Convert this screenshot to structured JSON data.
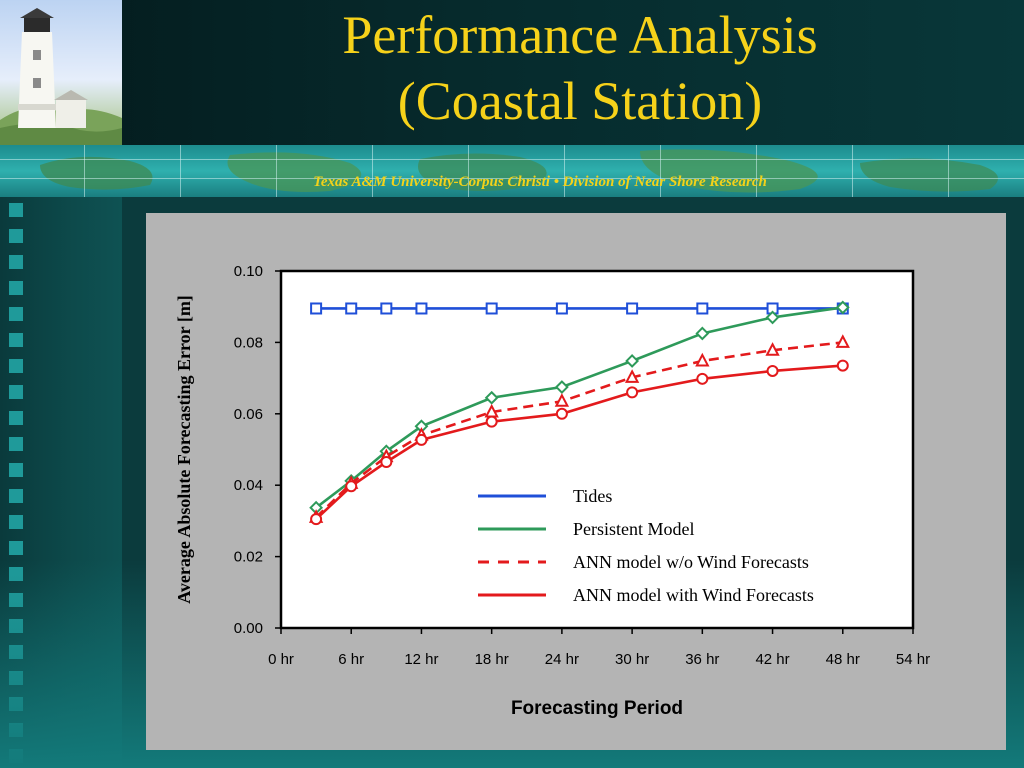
{
  "slide": {
    "title_line1": "Performance Analysis",
    "title_line2": "(Coastal Station)",
    "banner": "Texas A&M University-Corpus Christi • Division of Near Shore Research"
  },
  "colors": {
    "title": "#f6d21a",
    "banner": "#f3d21a",
    "tides": "#1f4fd8",
    "persistent": "#2e9a5a",
    "ann_no_wind": "#e31a1c",
    "ann_wind": "#e31a1c"
  },
  "chart_data": {
    "type": "line",
    "title": "",
    "xlabel": "Forecasting Period",
    "ylabel": "Average Absolute Forecasting Error [m]",
    "xlim": [
      0,
      54
    ],
    "ylim": [
      0,
      0.1
    ],
    "x_ticks": [
      0,
      6,
      12,
      18,
      24,
      30,
      36,
      42,
      48,
      54
    ],
    "x_tick_labels": [
      "0 hr",
      "6 hr",
      "12 hr",
      "18 hr",
      "24 hr",
      "30 hr",
      "36 hr",
      "42 hr",
      "48 hr",
      "54 hr"
    ],
    "y_ticks": [
      0,
      0.02,
      0.04,
      0.06,
      0.08,
      0.1
    ],
    "y_tick_labels": [
      "0.00",
      "0.02",
      "0.04",
      "0.06",
      "0.08",
      "0.10"
    ],
    "grid": false,
    "legend_position": "lower-right",
    "series": [
      {
        "name": "Tides",
        "color": "#1f4fd8",
        "dash": "solid",
        "marker": "square",
        "x": [
          3,
          6,
          9,
          12,
          18,
          24,
          30,
          36,
          42,
          48
        ],
        "y": [
          0.0895,
          0.0895,
          0.0895,
          0.0895,
          0.0895,
          0.0895,
          0.0895,
          0.0895,
          0.0895,
          0.0895
        ]
      },
      {
        "name": "Persistent Model",
        "color": "#2e9a5a",
        "dash": "solid",
        "marker": "diamond",
        "x": [
          3,
          6,
          9,
          12,
          18,
          24,
          30,
          36,
          42,
          48
        ],
        "y": [
          0.0337,
          0.0412,
          0.0495,
          0.0565,
          0.0645,
          0.0675,
          0.0748,
          0.0825,
          0.087,
          0.0898
        ]
      },
      {
        "name": "ANN model w/o Wind Forecasts",
        "color": "#e31a1c",
        "dash": "dashed",
        "marker": "triangle",
        "x": [
          3,
          6,
          9,
          12,
          18,
          24,
          30,
          36,
          42,
          48
        ],
        "y": [
          0.031,
          0.0405,
          0.048,
          0.054,
          0.0605,
          0.0635,
          0.0702,
          0.0748,
          0.0778,
          0.08
        ]
      },
      {
        "name": "ANN model with Wind Forecasts",
        "color": "#e31a1c",
        "dash": "solid",
        "marker": "circle",
        "x": [
          3,
          6,
          9,
          12,
          18,
          24,
          30,
          36,
          42,
          48
        ],
        "y": [
          0.0305,
          0.0397,
          0.0465,
          0.0527,
          0.0578,
          0.06,
          0.066,
          0.0698,
          0.072,
          0.0735
        ]
      }
    ]
  }
}
